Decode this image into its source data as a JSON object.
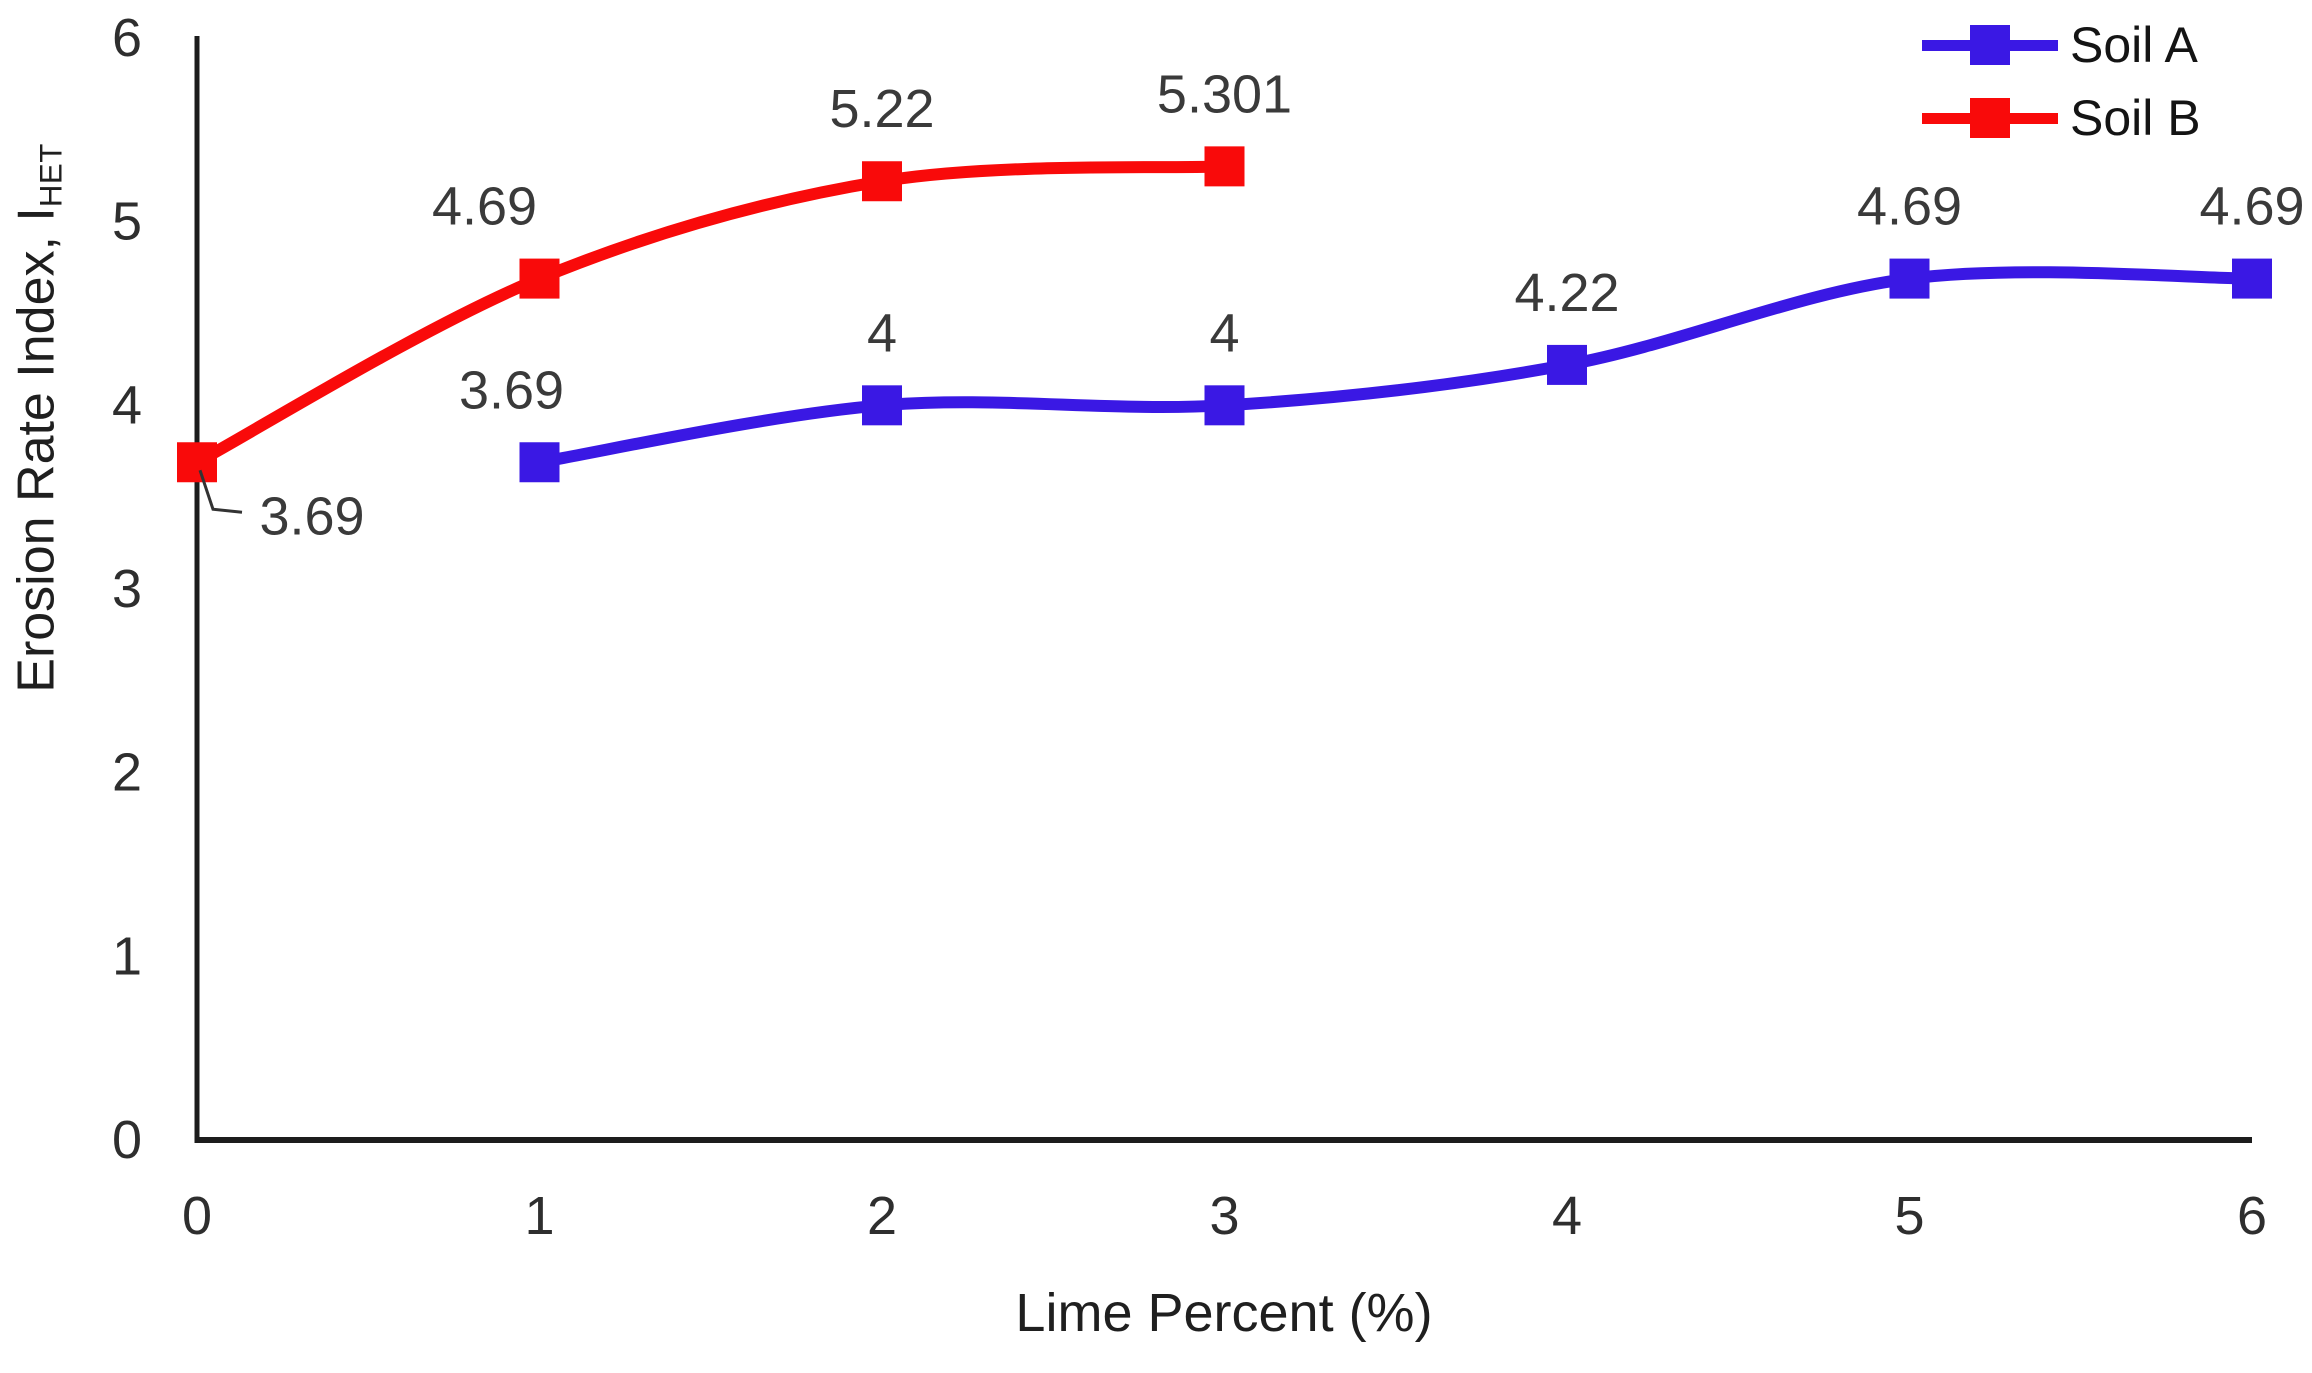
{
  "chart_data": {
    "type": "line",
    "xlabel": "Lime Percent (%)",
    "ylabel_main": "Erosion Rate Index, I",
    "ylabel_sub": "HET",
    "xlim": [
      0,
      6
    ],
    "ylim": [
      0,
      6
    ],
    "xticks": [
      "0",
      "1",
      "2",
      "3",
      "4",
      "5",
      "6"
    ],
    "yticks": [
      "0",
      "1",
      "2",
      "3",
      "4",
      "5",
      "6"
    ],
    "grid": false,
    "legend_position": "top-right",
    "axis_color": "#1c1c1c",
    "tick_text_color": "#2e2e2e",
    "data_label_color": "#3a3a3a",
    "series": [
      {
        "name": "Soil A",
        "color": "#3A18E4",
        "marker": "square",
        "points": [
          {
            "x": 1,
            "y": 3.69,
            "label": "3.69",
            "label_dx": -28
          },
          {
            "x": 2,
            "y": 4,
            "label": "4"
          },
          {
            "x": 3,
            "y": 4,
            "label": "4"
          },
          {
            "x": 4,
            "y": 4.22,
            "label": "4.22"
          },
          {
            "x": 5,
            "y": 4.69,
            "label": "4.69"
          },
          {
            "x": 6,
            "y": 4.69,
            "label": "4.69"
          }
        ]
      },
      {
        "name": "Soil B",
        "color": "#F90A0A",
        "marker": "square",
        "points": [
          {
            "x": 0,
            "y": 3.69,
            "label": "3.69",
            "callout": true,
            "label_dx": 115,
            "label_dy": 54
          },
          {
            "x": 1,
            "y": 4.69,
            "label": "4.69",
            "label_dx": -55
          },
          {
            "x": 2,
            "y": 5.22,
            "label": "5.22"
          },
          {
            "x": 3,
            "y": 5.301,
            "label": "5.301"
          }
        ]
      }
    ]
  }
}
